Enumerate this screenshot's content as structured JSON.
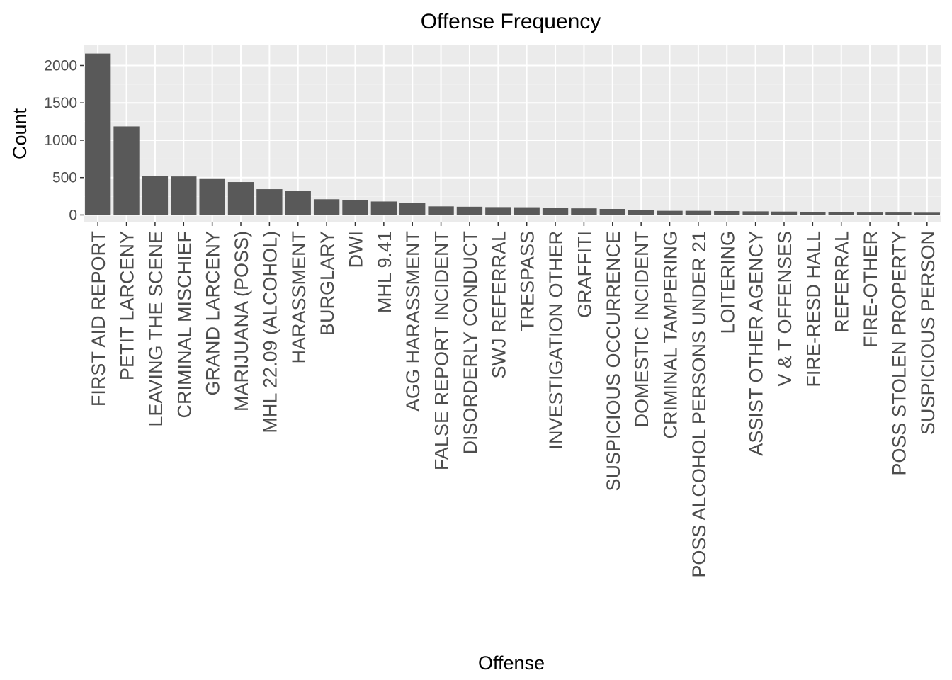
{
  "chart_data": {
    "type": "bar",
    "title": "Offense Frequency",
    "xlabel": "Offense",
    "ylabel": "Count",
    "ylim": [
      -100,
      2270
    ],
    "y_ticks": [
      0,
      500,
      1000,
      1500,
      2000
    ],
    "y_tick_labels": [
      "0",
      "500",
      "1000",
      "1500",
      "2000"
    ],
    "grid": true,
    "colors": {
      "panel_background": "#ebebeb",
      "grid_major": "#ffffff",
      "bar_fill": "#595959",
      "tick_text": "#4d4d4d",
      "tick_mark": "#333333"
    },
    "categories": [
      "FIRST AID REPORT",
      "PETIT LARCENY",
      "LEAVING THE SCENE",
      "CRIMINAL MISCHIEF",
      "GRAND LARCENY",
      "MARIJUANA (POSS)",
      "MHL 22.09 (ALCOHOL)",
      "HARASSMENT",
      "BURGLARY",
      "DWI",
      "MHL 9.41",
      "AGG HARASSMENT",
      "FALSE REPORT INCIDENT",
      "DISORDERLY CONDUCT",
      "SWJ REFERRAL",
      "TRESPASS",
      "INVESTIGATION OTHER",
      "GRAFFITI",
      "SUSPICIOUS OCCURRENCE",
      "DOMESTIC INCIDENT",
      "CRIMINAL TAMPERING",
      "POSS ALCOHOL PERSONS UNDER 21",
      "LOITERING",
      "ASSIST OTHER AGENCY",
      "V & T OFFENSES",
      "FIRE-RESD HALL",
      "REFERRAL",
      "FIRE-OTHER",
      "POSS STOLEN PROPERTY",
      "SUSPICIOUS PERSON"
    ],
    "values": [
      2160,
      1185,
      525,
      515,
      490,
      440,
      345,
      325,
      210,
      195,
      180,
      165,
      115,
      110,
      105,
      103,
      90,
      88,
      80,
      70,
      55,
      55,
      52,
      48,
      45,
      35,
      33,
      32,
      32,
      30
    ]
  }
}
